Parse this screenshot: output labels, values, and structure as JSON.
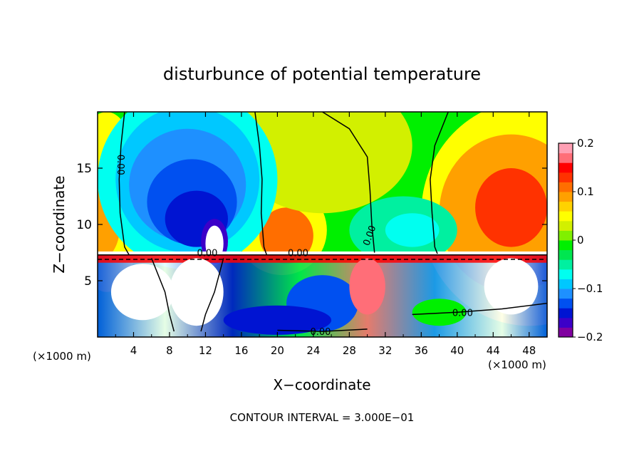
{
  "chart_data": {
    "type": "heatmap",
    "title": "disturbunce of potential temperature",
    "xlabel": "X−coordinate",
    "ylabel": "Z−coordinate",
    "x_unit_left": "(×1000 m)",
    "x_unit_right": "(×1000 m)",
    "footer": "CONTOUR INTERVAL = 3.000E−01",
    "xlim": [
      0,
      50
    ],
    "ylim": [
      0,
      20
    ],
    "x_ticks": [
      "4",
      "8",
      "12",
      "16",
      "20",
      "24",
      "28",
      "32",
      "36",
      "40",
      "44",
      "48"
    ],
    "y_ticks": [
      "5",
      "10",
      "15"
    ],
    "colorbar": {
      "range": [
        -0.2,
        0.2
      ],
      "ticks": [
        "0.2",
        "0.1",
        "0",
        "−0.1",
        "−0.2"
      ],
      "colors": [
        "#8000a0",
        "#3c00c8",
        "#0014d2",
        "#0050f0",
        "#1e90ff",
        "#00c8ff",
        "#00fff0",
        "#00f0a0",
        "#00e650",
        "#00f000",
        "#80f000",
        "#d2f000",
        "#ffff00",
        "#ffd200",
        "#ffa000",
        "#ff6e00",
        "#ff3200",
        "#ff0000",
        "#ff6e78",
        "#ffa0b4"
      ]
    },
    "contour_labels": [
      {
        "text": "0.00",
        "x": 2.5,
        "z": 15.3,
        "rot": 90
      },
      {
        "text": "0.00",
        "x": 12.2,
        "z": 7.4,
        "rot": 0
      },
      {
        "text": "0.00",
        "x": 22.3,
        "z": 7.4,
        "rot": 0
      },
      {
        "text": "0.00",
        "x": 30.3,
        "z": 9.0,
        "rot": -70
      },
      {
        "text": "0.00",
        "x": 40.6,
        "z": 2.1,
        "rot": 0
      },
      {
        "text": "0.00",
        "x": 24.8,
        "z": 0.4,
        "rot": 0
      }
    ]
  }
}
